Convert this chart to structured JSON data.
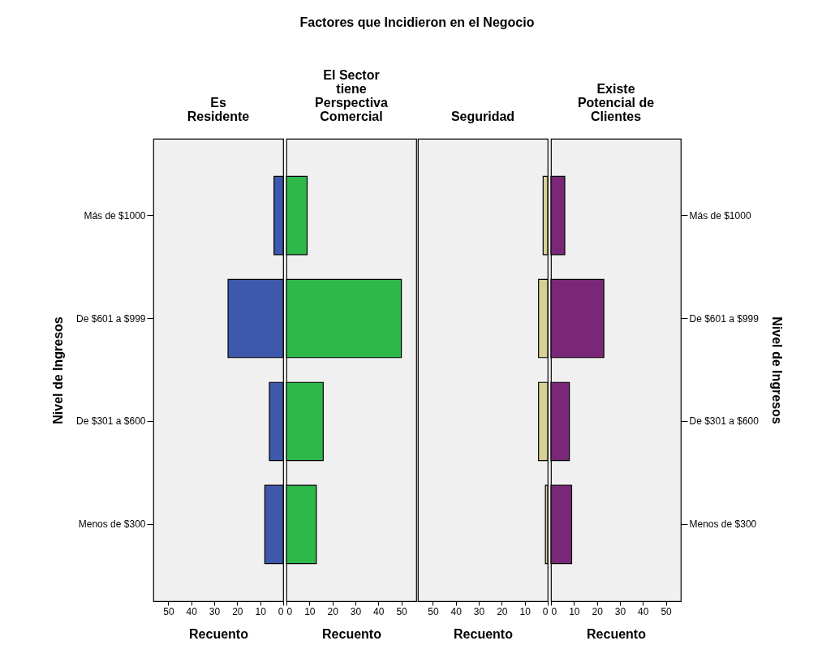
{
  "chart_data": [
    {
      "type": "bar",
      "orientation": "horizontal",
      "title": "Es\nResidente",
      "annotations": [
        "Factores que Incidieron en el Negocio"
      ],
      "xlabel": "Recuento",
      "ylabel": "Nivel de Ingresos",
      "categories": [
        "Más de $1000",
        "De $601 a $999",
        "De $301 a $600",
        "Menos de $300"
      ],
      "values": [
        4,
        24,
        6,
        8
      ],
      "color": "#3e58ac",
      "xlim": [
        56.5,
        0
      ],
      "xticks": [
        50,
        40,
        30,
        20,
        10,
        0
      ],
      "grid": false
    },
    {
      "type": "bar",
      "orientation": "horizontal",
      "title": "El Sector\ntiene\nPerspectiva\nComercial",
      "xlabel": "Recuento",
      "values": [
        9,
        50,
        16,
        13
      ],
      "color": "#2eb84a",
      "xlim": [
        0,
        56.5
      ],
      "xticks": [
        0,
        10,
        20,
        30,
        40,
        50
      ],
      "tick_labels": "x",
      "grid": false
    },
    {
      "type": "bar",
      "orientation": "horizontal",
      "title": "Seguridad",
      "xlabel": "Recuento",
      "values": [
        2,
        4,
        4,
        1
      ],
      "color": "#d6d096",
      "xlim": [
        56.5,
        0
      ],
      "xticks": [
        50,
        40,
        30,
        20,
        10,
        0
      ],
      "tick_labels": "x",
      "grid": false
    },
    {
      "type": "bar",
      "orientation": "horizontal",
      "title": "Existe\nPotencial de\nClientes",
      "xlabel": "Recuento",
      "ylabel": "Nivel de Ingresos",
      "categories": [
        "Más de $1000",
        "De $601 a $999",
        "De $301 a $600",
        "Menos de $300"
      ],
      "values": [
        6,
        23,
        8,
        9
      ],
      "color": "#7b2777",
      "xlim": [
        0,
        56.5
      ],
      "xticks": [
        0,
        10,
        20,
        30,
        40,
        50
      ],
      "grid": false
    }
  ]
}
